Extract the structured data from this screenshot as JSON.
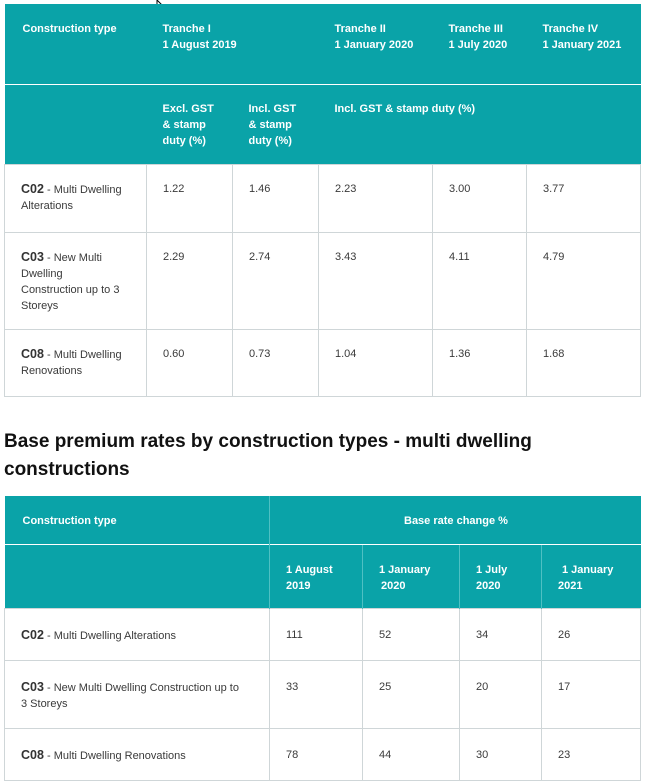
{
  "table1": {
    "header": {
      "construction_type": "Construction type",
      "tranche1_title": "Tranche I",
      "tranche1_date": "1 August 2019",
      "tranche2_title": "Tranche II",
      "tranche2_date": "1 January 2020",
      "tranche3_title": "Tranche III",
      "tranche3_date": "1 July 2020",
      "tranche4_title": "Tranche IV",
      "tranche4_date": "1 January 2021",
      "excl_line1": "Excl. GST",
      "excl_line2": "& stamp",
      "excl_line3": "duty (%)",
      "incl_line1": "Incl. GST",
      "incl_line2": "& stamp",
      "incl_line3": "duty (%)",
      "incl_span": "Incl. GST & stamp duty (%)"
    },
    "rows": [
      {
        "code": "C02",
        "desc_l1": " - Multi Dwelling",
        "desc_l2": "Alterations",
        "desc_l3": "",
        "desc_l4": "",
        "v1": "1.22",
        "v2": "1.46",
        "v3": "2.23",
        "v4": "3.00",
        "v5": "3.77"
      },
      {
        "code": "C03",
        "desc_l1": " - New Multi",
        "desc_l2": "Dwelling",
        "desc_l3": "Construction up to 3",
        "desc_l4": "Storeys",
        "v1": "2.29",
        "v2": "2.74",
        "v3": "3.43",
        "v4": "4.11",
        "v5": "4.79"
      },
      {
        "code": "C08",
        "desc_l1": " - Multi Dwelling",
        "desc_l2": "Renovations",
        "desc_l3": "",
        "desc_l4": "",
        "v1": "0.60",
        "v2": "0.73",
        "v3": "1.04",
        "v4": "1.36",
        "v5": "1.68"
      }
    ]
  },
  "heading": "Base premium rates by construction types - multi dwelling constructions",
  "table2": {
    "header": {
      "construction_type": "Construction type",
      "base_rate_change": "Base rate change %",
      "d1_l1": "1 August",
      "d1_l2": "2019",
      "d2_l1": "1 January",
      "d2_l2": "2020",
      "d3_l1": "1 July",
      "d3_l2": "2020",
      "d4_l1": "1 January",
      "d4_l2": "2021"
    },
    "rows": [
      {
        "code": "C02",
        "desc_l1": " - Multi Dwelling Alterations",
        "desc_l2": "",
        "v1": "111",
        "v2": "52",
        "v3": "34",
        "v4": "26"
      },
      {
        "code": "C03",
        "desc_l1": " - New Multi Dwelling Construction up to",
        "desc_l2": "3 Storeys",
        "v1": "33",
        "v2": "25",
        "v3": "20",
        "v4": "17"
      },
      {
        "code": "C08",
        "desc_l1": " - Multi Dwelling Renovations",
        "desc_l2": "",
        "v1": "78",
        "v2": "44",
        "v3": "30",
        "v4": "23"
      }
    ]
  },
  "colors": {
    "header_bg": "#0aa3a8",
    "header_text": "#ffffff",
    "border": "#cfd6d8"
  },
  "cursor": "mouse-pointer-icon"
}
